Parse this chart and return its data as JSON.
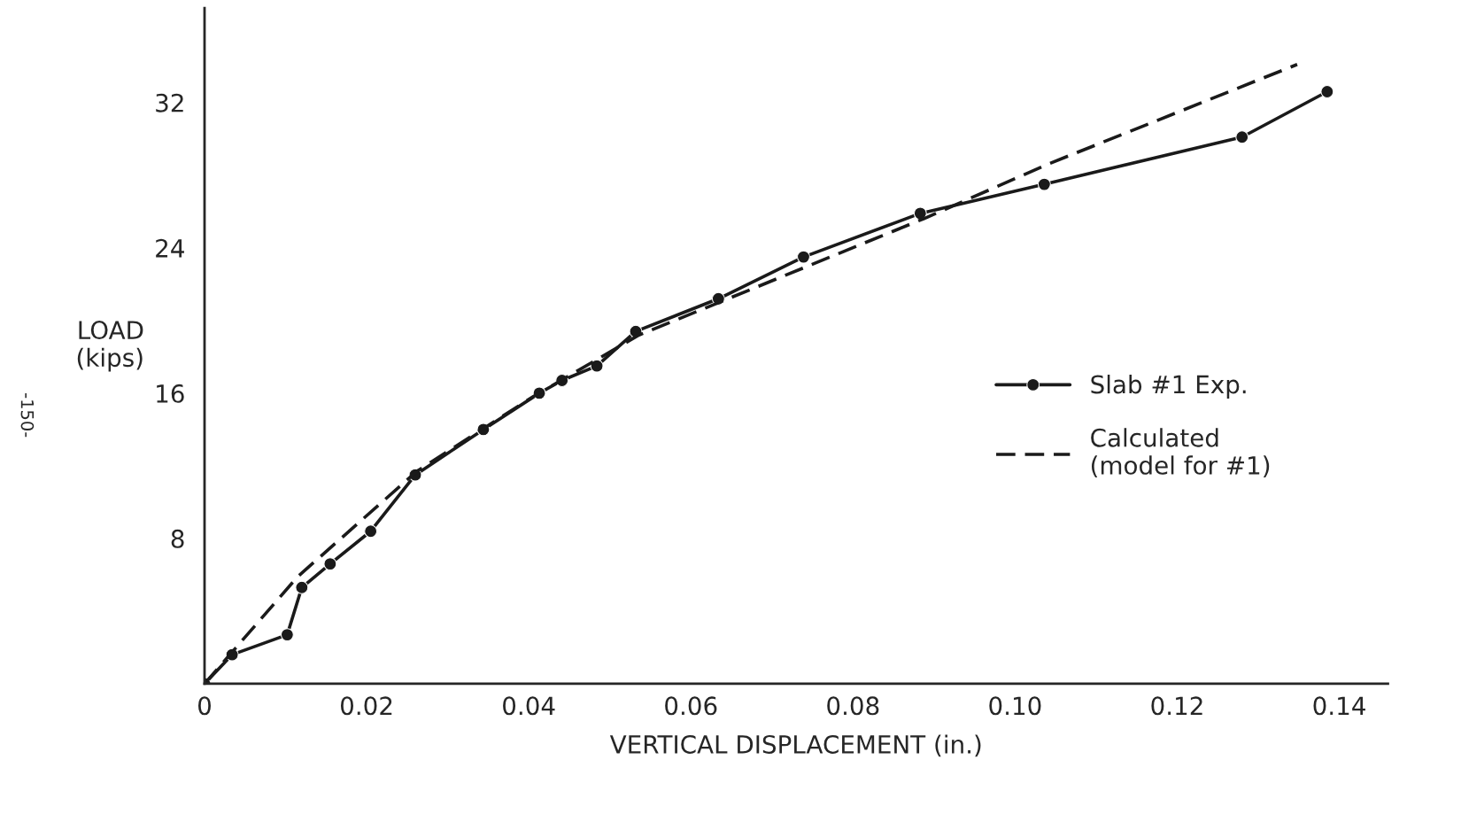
{
  "chart_data": {
    "type": "line",
    "xlabel": "VERTICAL DISPLACEMENT (in.)",
    "ylabel": "LOAD\n(kips)",
    "xlim": [
      0,
      0.146
    ],
    "ylim": [
      0,
      37.2
    ],
    "xticks": [
      {
        "value": 0,
        "label": "0"
      },
      0.02,
      0.04,
      0.06,
      0.08,
      {
        "value": 0.1,
        "label": "0.10"
      },
      0.12,
      0.14
    ],
    "yticks": [
      8,
      16,
      24,
      32
    ],
    "grid": false,
    "legend": "right",
    "annotations": [
      "-150-"
    ],
    "series": [
      {
        "name": "Slab #1 Exp.",
        "color": "#1a1a1a",
        "marker": "circle",
        "line_style": "solid",
        "x": [
          0,
          0.0034,
          0.0102,
          0.012,
          0.0155,
          0.0205,
          0.026,
          0.0344,
          0.0413,
          0.0441,
          0.0484,
          0.0532,
          0.0634,
          0.0739,
          0.0883,
          0.1036,
          0.128,
          0.1385
        ],
        "values": [
          0,
          1.6,
          2.7,
          5.3,
          6.6,
          8.4,
          11.5,
          14.0,
          16.0,
          16.7,
          17.5,
          19.4,
          21.2,
          23.5,
          25.9,
          27.5,
          30.1,
          32.6
        ]
      },
      {
        "name": "Calculated\n(model for #1)",
        "color": "#1a1a1a",
        "marker": "none",
        "line_style": "dashed",
        "x": [
          0,
          0.0115,
          0.0262,
          0.0405,
          0.0536,
          0.0635,
          0.0887,
          0.104,
          0.1348
        ],
        "values": [
          0,
          5.9,
          11.7,
          15.8,
          19.2,
          21.0,
          25.6,
          28.6,
          34.1
        ]
      }
    ]
  }
}
